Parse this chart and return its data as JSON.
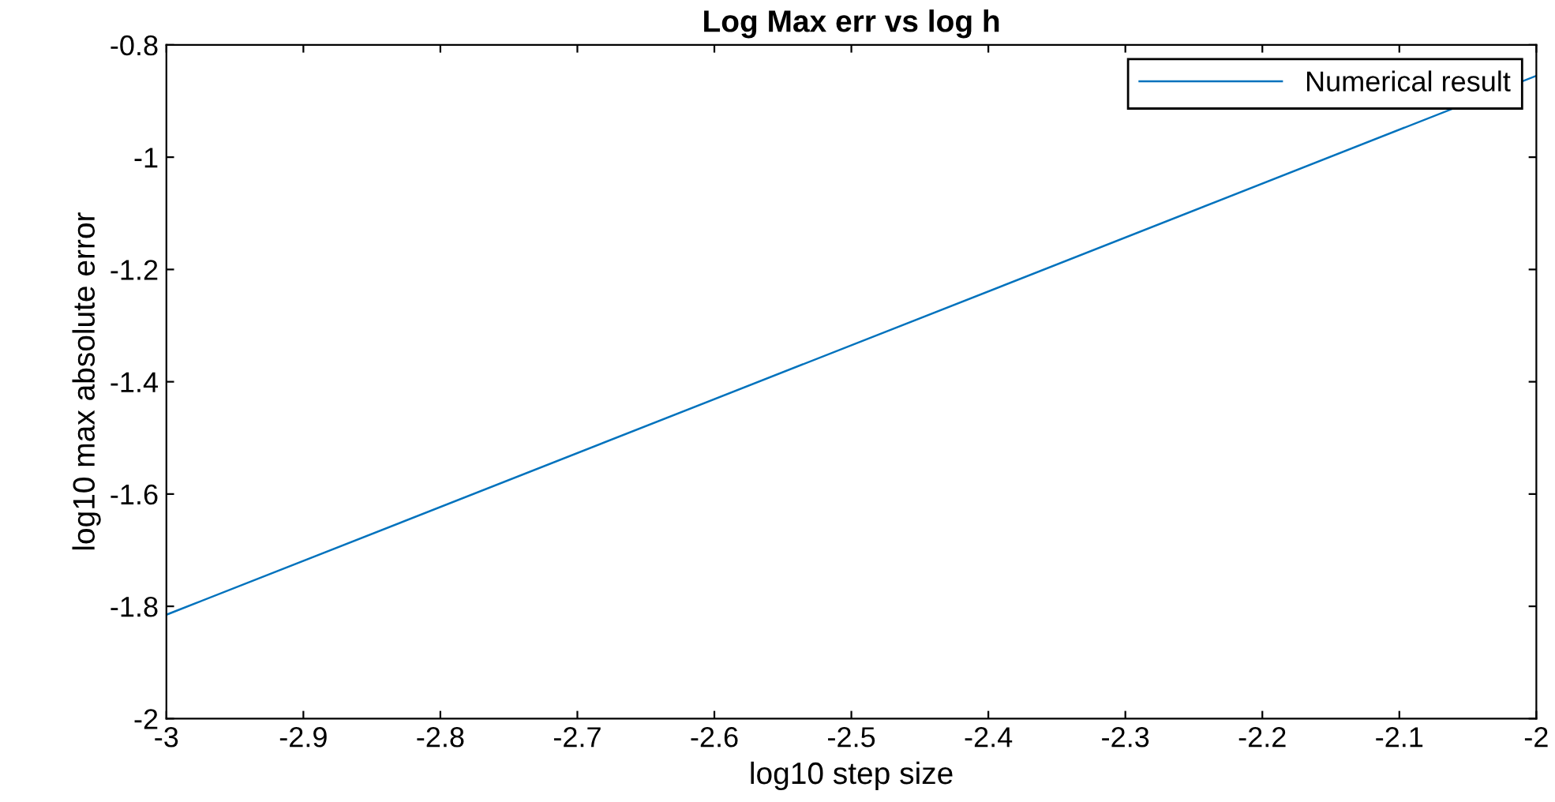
{
  "chart_data": {
    "type": "line",
    "title": "Log Max err vs log h",
    "xlabel": "log10 step size",
    "ylabel": "log10 max absolute error",
    "x": [
      -3,
      -2
    ],
    "series": [
      {
        "name": "Numerical result",
        "color": "#0072bd",
        "values": [
          -1.815,
          -0.855
        ]
      }
    ],
    "xlim": [
      -3,
      -2
    ],
    "ylim": [
      -2,
      -0.8
    ],
    "xticks": [
      -3,
      -2.9,
      -2.8,
      -2.7,
      -2.6,
      -2.5,
      -2.4,
      -2.3,
      -2.2,
      -2.1,
      -2
    ],
    "yticks": [
      -2,
      -1.8,
      -1.6,
      -1.4,
      -1.2,
      -1,
      -0.8
    ],
    "grid": false,
    "legend": "top right",
    "marker": "none",
    "line_style": "solid"
  }
}
